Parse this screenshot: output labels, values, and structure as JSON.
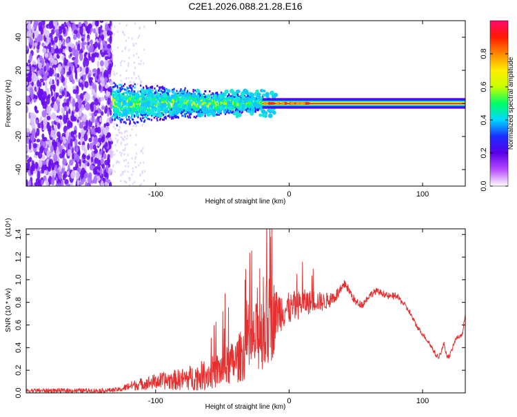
{
  "title": "C2E1.2026.088.21.28.E16",
  "colors": {
    "axes": "#000000",
    "snr_line": "#e63030",
    "background": "#ffffff"
  },
  "chart_data": [
    {
      "type": "heatmap",
      "name": "spectrogram",
      "xlabel": "Height of straight line (km)",
      "ylabel": "Frequency (Hz)",
      "xlim": [
        -197,
        132
      ],
      "ylim": [
        -50,
        50
      ],
      "x_ticks": [
        -100,
        0,
        100
      ],
      "x_tick_labels": [
        "-100",
        "0",
        "100"
      ],
      "y_ticks": [
        -40,
        -20,
        0,
        20,
        40
      ],
      "y_tick_labels": [
        "-40",
        "-20",
        "0",
        "20",
        "40"
      ],
      "colorbar": {
        "label": "Normalized spectral amplitude",
        "range": [
          0,
          1
        ],
        "ticks": [
          0.0,
          0.2,
          0.4,
          0.6,
          0.8
        ],
        "tick_labels": [
          "0.0",
          "0.2",
          "0.4",
          "0.6",
          "0.8"
        ],
        "colormap": [
          "#ffffff",
          "#b84cff",
          "#5a00e6",
          "#1a2bff",
          "#00d8ff",
          "#00ff66",
          "#c8ff00",
          "#ffee00",
          "#ff8800",
          "#ff1a00",
          "#ff0a6e"
        ]
      },
      "regions": [
        {
          "x_range": [
            -197,
            -133
          ],
          "freq_range": [
            -50,
            50
          ],
          "description": "noise"
        },
        {
          "x_range": [
            -133,
            -20
          ],
          "freq_range": [
            -15,
            15
          ],
          "description": "broadband_signal"
        },
        {
          "x_range": [
            -20,
            132
          ],
          "freq_range": [
            -3,
            3
          ],
          "description": "narrowband_carrier"
        }
      ]
    },
    {
      "type": "line",
      "name": "snr",
      "xlabel": "Height of straight line (km)",
      "ylabel": "SNR (10 * v/v)",
      "y_multiplier": "(x10⁴)",
      "xlim": [
        -197,
        132
      ],
      "ylim": [
        0,
        1.45
      ],
      "x_ticks": [
        -100,
        0,
        100
      ],
      "x_tick_labels": [
        "-100",
        "0",
        "100"
      ],
      "y_ticks": [
        0.0,
        0.2,
        0.4,
        0.6,
        0.8,
        1.0,
        1.2,
        1.4
      ],
      "y_tick_labels": [
        "0.0",
        "0.2",
        "0.4",
        "0.6",
        "0.8",
        "1.0",
        "1.2",
        "1.4"
      ],
      "series": [
        {
          "name": "SNR",
          "envelope": {
            "x": [
              -197,
              -170,
              -140,
              -126,
              -120,
              -110,
              -100,
              -90,
              -80,
              -70,
              -60,
              -50,
              -40,
              -30,
              -25,
              -20,
              -15,
              -10,
              -5,
              0,
              5,
              10,
              15,
              20,
              25,
              30,
              35,
              40,
              42,
              45,
              50,
              55,
              60,
              65,
              70,
              75,
              80,
              85,
              90,
              95,
              100,
              105,
              108,
              110,
              112,
              114,
              116,
              118,
              120,
              125,
              130,
              132
            ],
            "y": [
              0.02,
              0.02,
              0.02,
              0.03,
              0.06,
              0.08,
              0.1,
              0.11,
              0.12,
              0.14,
              0.17,
              0.21,
              0.28,
              0.4,
              0.48,
              0.55,
              0.62,
              0.7,
              0.74,
              0.74,
              0.76,
              0.8,
              0.8,
              0.82,
              0.8,
              0.82,
              0.86,
              0.92,
              0.97,
              0.9,
              0.8,
              0.78,
              0.86,
              0.9,
              0.88,
              0.85,
              0.86,
              0.8,
              0.72,
              0.6,
              0.52,
              0.44,
              0.38,
              0.33,
              0.32,
              0.36,
              0.44,
              0.33,
              0.32,
              0.48,
              0.52,
              0.7
            ]
          },
          "noise_amplitude": {
            "x": [
              -197,
              -126,
              -120,
              -100,
              -80,
              -60,
              -40,
              -30,
              -20,
              -15,
              -12,
              -10,
              0,
              10,
              30,
              45,
              60,
              80,
              100,
              132
            ],
            "y": [
              0.02,
              0.02,
              0.04,
              0.07,
              0.1,
              0.14,
              0.2,
              0.28,
              0.35,
              0.42,
              0.38,
              0.22,
              0.14,
              0.12,
              0.07,
              0.04,
              0.03,
              0.03,
              0.02,
              0.02
            ]
          },
          "peaks": [
            {
              "x": -13,
              "y": 1.45
            },
            {
              "x": -22,
              "y": 1.1
            },
            {
              "x": -14,
              "y": 1.38
            },
            {
              "x": 10,
              "y": 1.16
            },
            {
              "x": -33,
              "y": 1.0
            },
            {
              "x": -48,
              "y": 0.88
            }
          ]
        }
      ]
    }
  ]
}
